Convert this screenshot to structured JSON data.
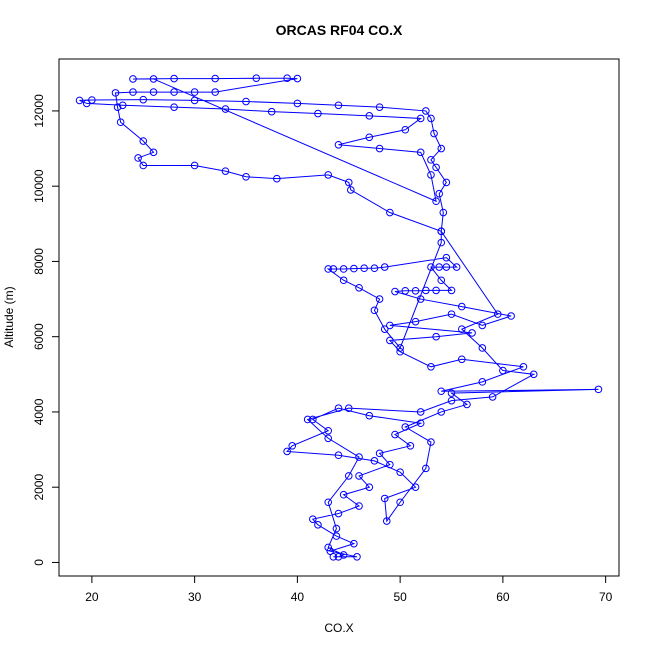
{
  "chart_data": {
    "type": "line",
    "markers": "open-circle",
    "title": "ORCAS RF04 CO.X",
    "x_label": "CO.X",
    "y_label": "Altitude (m)",
    "color": "#0000ff",
    "xlim": [
      16.8,
      71.3
    ],
    "ylim": [
      -360,
      13380
    ],
    "xticks": [
      20,
      30,
      40,
      50,
      60,
      70
    ],
    "yticks": [
      0,
      2000,
      4000,
      6000,
      8000,
      10000,
      12000
    ],
    "x": [
      43.5,
      45.8,
      43.2,
      45.5,
      43.8,
      42,
      41.5,
      44,
      46,
      44.5,
      47,
      46,
      49,
      48,
      51,
      49.5,
      52,
      47,
      44,
      41.5,
      43,
      39.5,
      39,
      44,
      47.5,
      50,
      51.5,
      48.5,
      48.7,
      50,
      52.5,
      53,
      50.5,
      54,
      56.5,
      55,
      69.3,
      54,
      58,
      62,
      56,
      53,
      50,
      49,
      53.5,
      57,
      49,
      51.5,
      55,
      58,
      60.8,
      56,
      52,
      49.5,
      50.5,
      51.5,
      52.5,
      53.5,
      55,
      54,
      53,
      53.8,
      54.5,
      55.5,
      54.5,
      48.5,
      47.5,
      46.5,
      45.5,
      44.5,
      43.5,
      43,
      44.5,
      46,
      48,
      47.5,
      48.5,
      50,
      54,
      54,
      54.2,
      53.8,
      54.5,
      53.5,
      53,
      54,
      53.3,
      53,
      52.5,
      48,
      44,
      40,
      35,
      30,
      25,
      20,
      18.8,
      19.5,
      23,
      28,
      33,
      37.5,
      42,
      47,
      52,
      50.5,
      47,
      44,
      48,
      52,
      53,
      53.5,
      26,
      24,
      28,
      32,
      36,
      39,
      40,
      32,
      30,
      28,
      26,
      24,
      22.3,
      22.5,
      22.8,
      25,
      26,
      24.5,
      25,
      30,
      33,
      35,
      38,
      43,
      45,
      45.2,
      49,
      54,
      59.5,
      56,
      58,
      60,
      63,
      59,
      55,
      52,
      45,
      41,
      43,
      46,
      45,
      43,
      43.8,
      43,
      44.5,
      44
    ],
    "values": [
      150,
      150,
      300,
      500,
      700,
      1000,
      1150,
      1300,
      1500,
      1800,
      2000,
      2300,
      2600,
      2900,
      3100,
      3400,
      3700,
      3900,
      4100,
      3800,
      3500,
      3100,
      2950,
      2850,
      2700,
      2400,
      2000,
      1700,
      1100,
      1600,
      2500,
      3200,
      3600,
      4000,
      4200,
      4500,
      4600,
      4550,
      4800,
      5200,
      5400,
      5200,
      5600,
      5900,
      6000,
      6100,
      6300,
      6400,
      6600,
      6300,
      6550,
      6800,
      7000,
      7200,
      7220,
      7220,
      7230,
      7230,
      7230,
      7500,
      7850,
      7850,
      7850,
      7850,
      8100,
      7850,
      7820,
      7820,
      7810,
      7800,
      7800,
      7800,
      7500,
      7300,
      7000,
      6700,
      6200,
      5700,
      8500,
      8800,
      9300,
      9800,
      10100,
      10500,
      10700,
      11000,
      11400,
      11800,
      12000,
      12100,
      12150,
      12200,
      12250,
      12280,
      12300,
      12290,
      12280,
      12200,
      12150,
      12100,
      12050,
      11980,
      11930,
      11870,
      11800,
      11500,
      11300,
      11100,
      11000,
      10900,
      10300,
      9600,
      12850,
      12850,
      12860,
      12860,
      12870,
      12870,
      12860,
      12500,
      12500,
      12500,
      12500,
      12500,
      12480,
      12100,
      11700,
      11200,
      10900,
      10750,
      10550,
      10550,
      10400,
      10250,
      10200,
      10300,
      10100,
      9900,
      9300,
      8800,
      6600,
      6200,
      5700,
      5100,
      5000,
      4400,
      4300,
      4000,
      4100,
      3800,
      3300,
      2800,
      2300,
      1600,
      900,
      400,
      200,
      150
    ]
  }
}
